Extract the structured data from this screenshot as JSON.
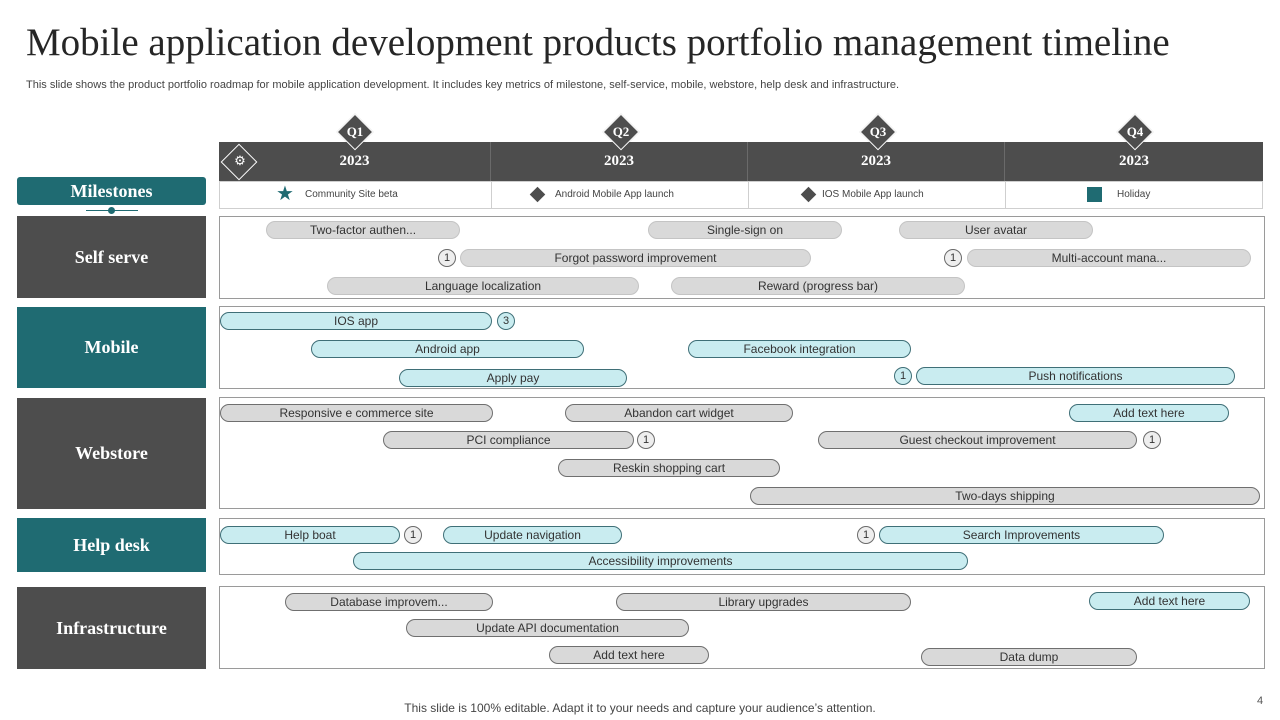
{
  "title": "Mobile application development products portfolio management timeline",
  "subtitle": "This slide shows the product portfolio roadmap for mobile application development. It includes key metrics of milestone, self-service, mobile, webstore, help desk and infrastructure.",
  "header_icon": "briefcase-gear-icon",
  "quarters": [
    {
      "q": "Q1",
      "year": "2023"
    },
    {
      "q": "Q2",
      "year": "2023"
    },
    {
      "q": "Q3",
      "year": "2023"
    },
    {
      "q": "Q4",
      "year": "2023"
    }
  ],
  "legend": [
    {
      "icon": "star-icon",
      "text": "Community  Site beta"
    },
    {
      "icon": "diamond-icon",
      "text": "Android Mobile  App launch"
    },
    {
      "icon": "diamond-icon",
      "text": "IOS Mobile  App launch"
    },
    {
      "icon": "square-icon",
      "text": "Holiday"
    }
  ],
  "colors": {
    "teal": "#1f6b72",
    "dark": "#4d4d4d",
    "cyan_pill": "#c9ecf0",
    "grey_pill": "#d9d9d9"
  },
  "milestones_label": "Milestones",
  "rows": {
    "self_serve": {
      "label": "Self serve",
      "tasks": [
        "Two-factor authen...",
        "Single-sign on",
        "User avatar",
        "Forgot password improvement",
        "Multi-account mana...",
        "Language localization",
        "Reward (progress bar)"
      ],
      "badges": [
        "1",
        "1"
      ]
    },
    "mobile": {
      "label": "Mobile",
      "tasks": [
        "IOS app",
        "Android app",
        "Facebook integration",
        "Apply pay",
        "Push notifications"
      ],
      "badges": [
        "3",
        "1"
      ]
    },
    "webstore": {
      "label": "Webstore",
      "tasks": [
        "Responsive e commerce site",
        "Abandon cart widget",
        "Add text here",
        "PCI compliance",
        "Guest checkout improvement",
        "Reskin shopping cart",
        "Two-days shipping"
      ],
      "badges": [
        "1",
        "1"
      ]
    },
    "help_desk": {
      "label": "Help desk",
      "tasks": [
        "Help boat",
        "Update navigation",
        "Search Improvements",
        "Accessibility improvements"
      ],
      "badges": [
        "1",
        "1"
      ]
    },
    "infrastructure": {
      "label": "Infrastructure",
      "tasks": [
        "Database improvem...",
        "Library upgrades",
        "Add text here",
        "Update API  documentation",
        "Add text here",
        "Data dump"
      ]
    }
  },
  "footer": "This slide is 100% editable. Adapt it to your needs and capture your audience’s attention.",
  "page_number": "4"
}
